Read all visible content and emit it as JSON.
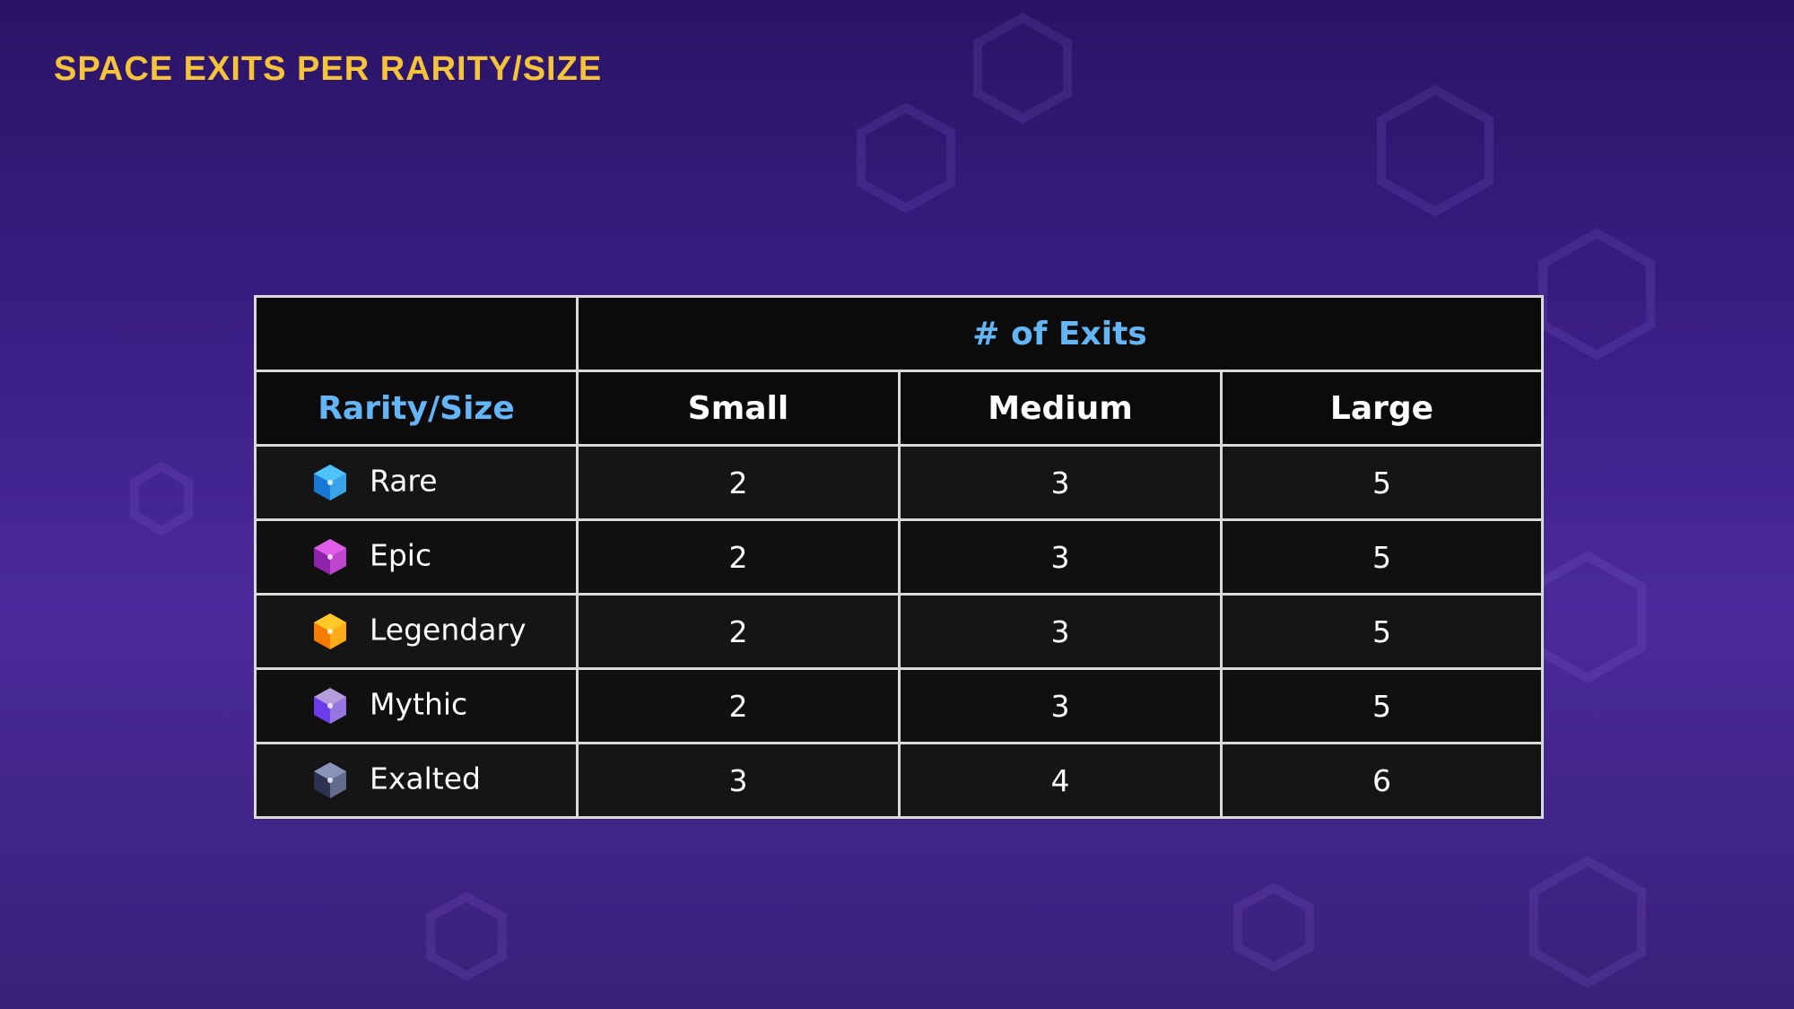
{
  "header": {
    "title": "SPACE EXITS PER RARITY/SIZE"
  },
  "table": {
    "group_header": "# of Exits",
    "columns": [
      "Rarity/Size",
      "Small",
      "Medium",
      "Large"
    ],
    "rows": [
      [
        "Rare",
        "2",
        "3",
        "5"
      ],
      [
        "Epic",
        "2",
        "3",
        "5"
      ],
      [
        "Legendary",
        "2",
        "3",
        "5"
      ],
      [
        "Mythic",
        "2",
        "3",
        "5"
      ],
      [
        "Exalted",
        "3",
        "4",
        "6"
      ]
    ]
  }
}
